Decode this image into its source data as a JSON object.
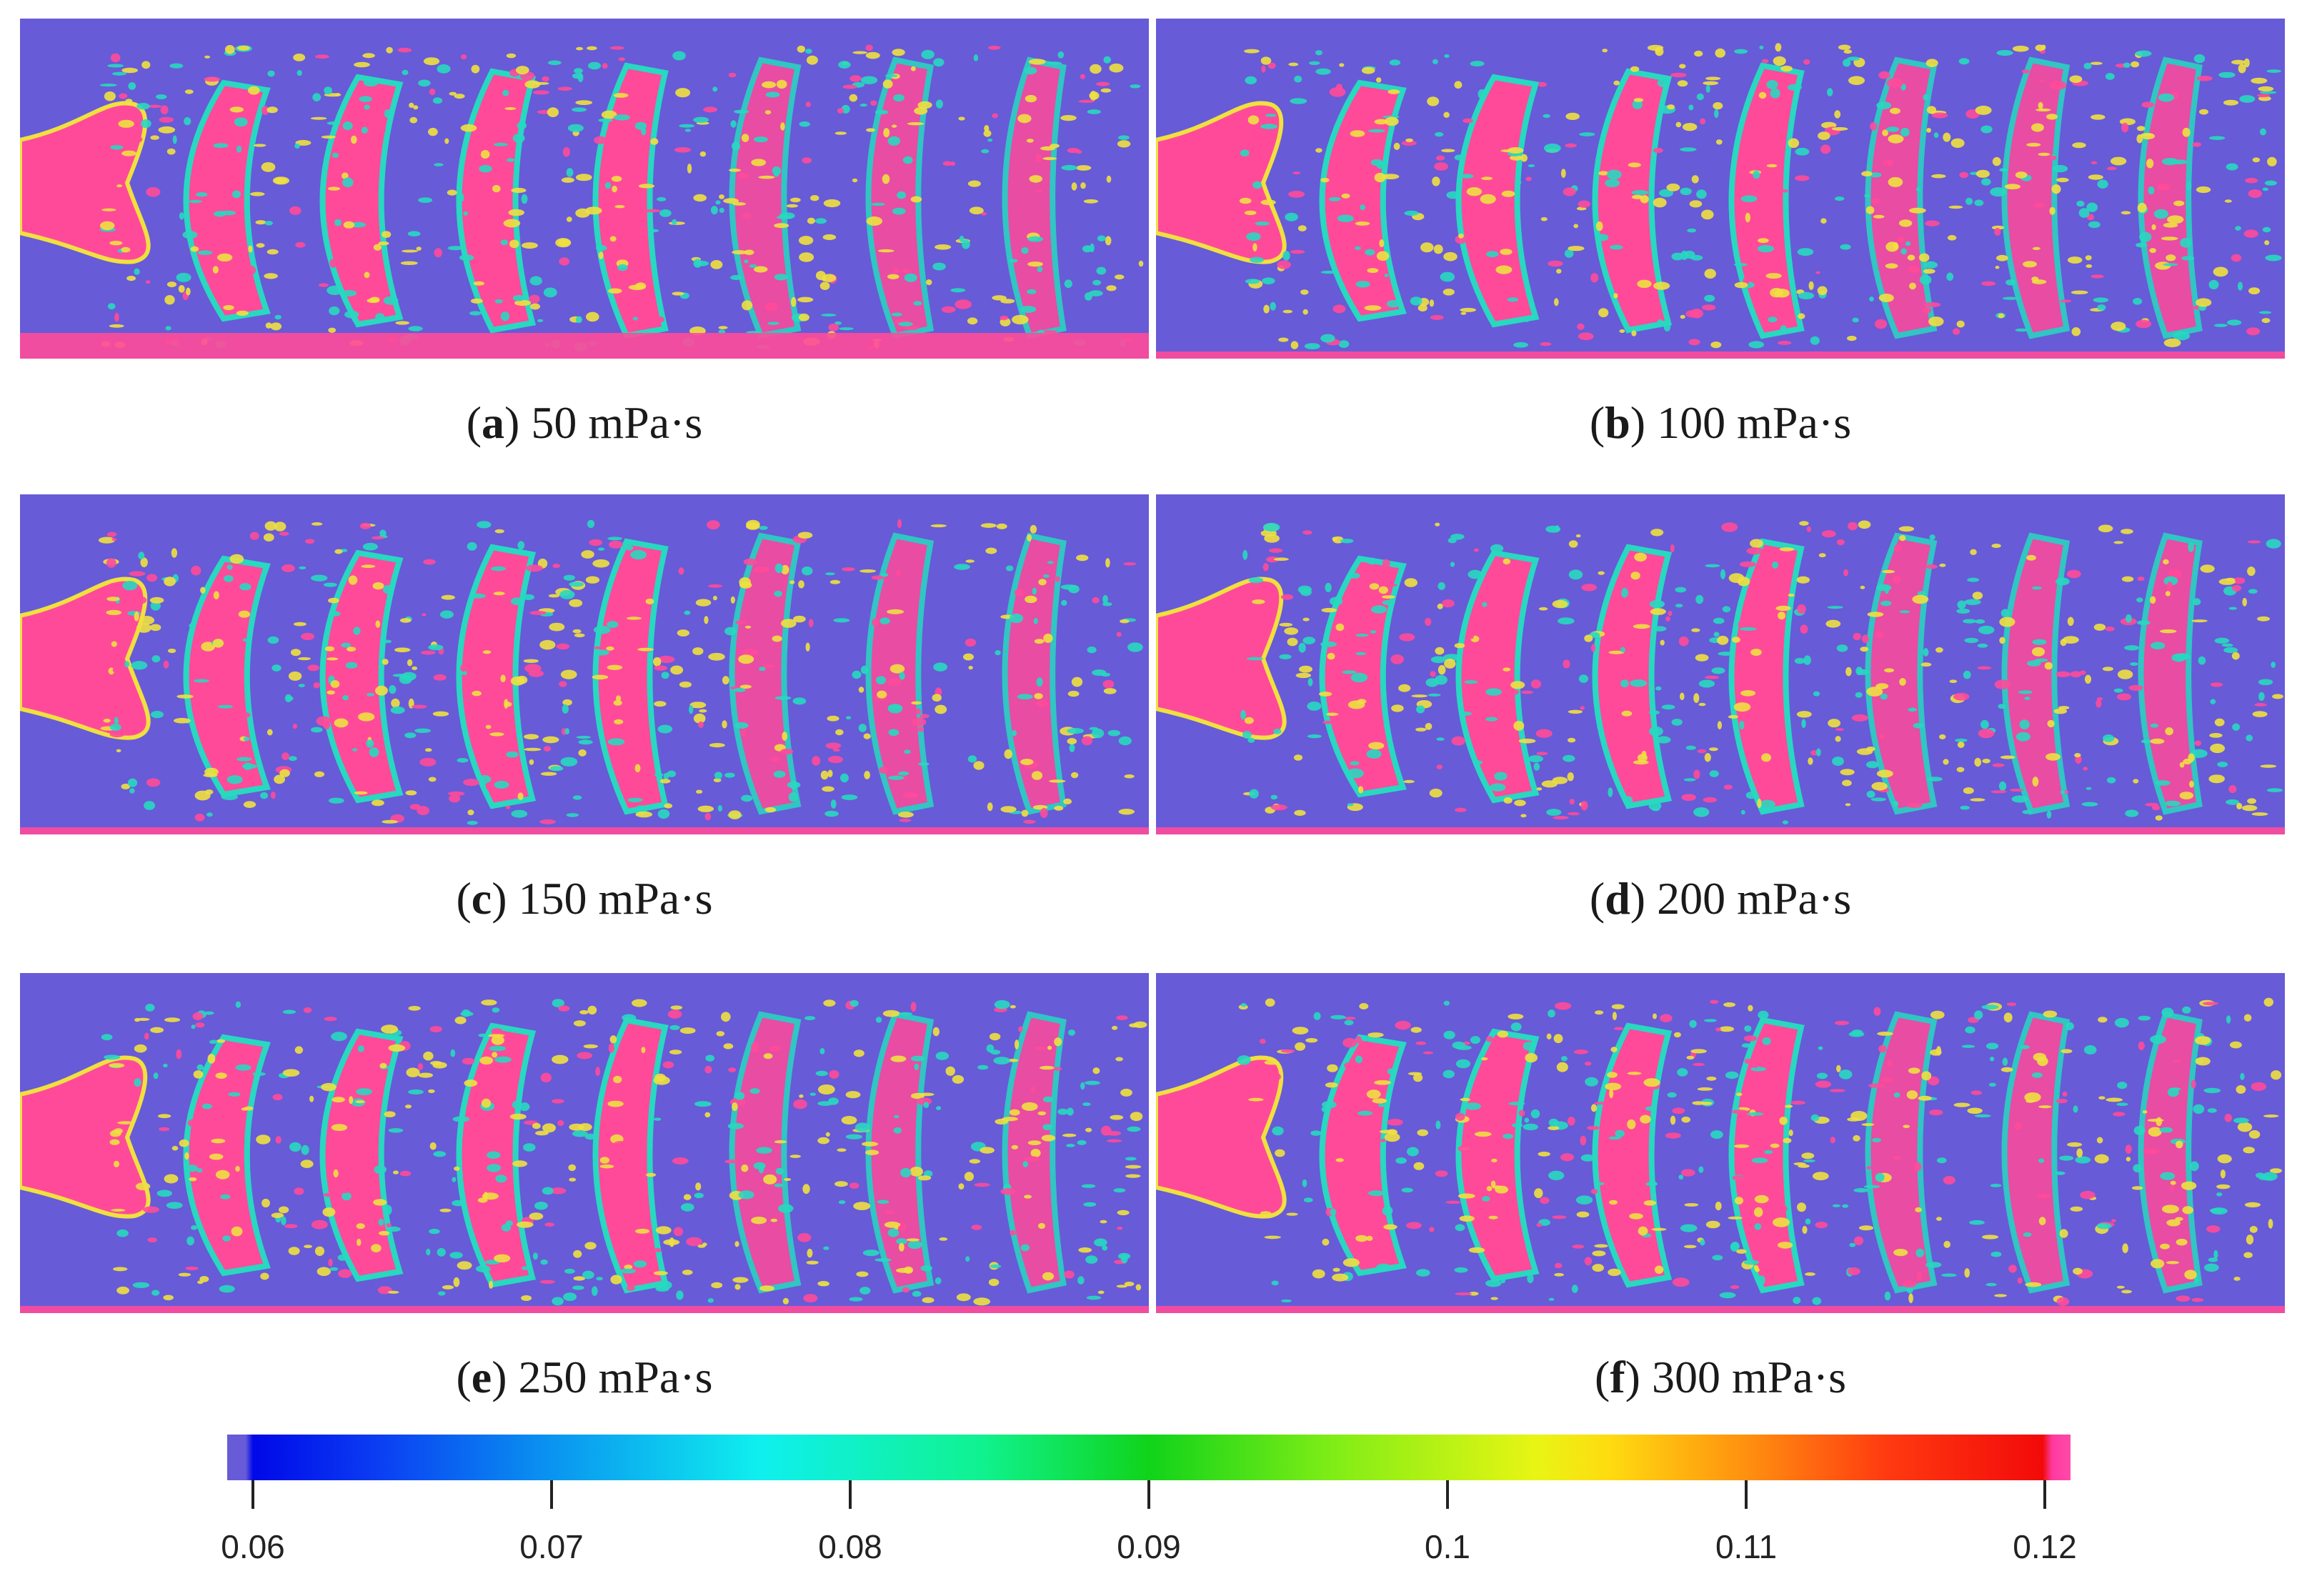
{
  "panels": [
    {
      "letter": "a",
      "label": "50 mPa·s"
    },
    {
      "letter": "b",
      "label": "100 mPa·s"
    },
    {
      "letter": "c",
      "label": "150 mPa·s"
    },
    {
      "letter": "d",
      "label": "200 mPa·s"
    },
    {
      "letter": "e",
      "label": "250 mPa·s"
    },
    {
      "letter": "f",
      "label": "300 mPa·s"
    }
  ],
  "colorbar": {
    "ticks": [
      "0.06",
      "0.07",
      "0.08",
      "0.09",
      "0.1",
      "0.11",
      "0.12"
    ],
    "min": 0.06,
    "max": 0.12
  },
  "colors": {
    "background": "#675bd7",
    "high": "#ff4a9a",
    "mid": "#f0e040",
    "low": "#28d8c0"
  }
}
